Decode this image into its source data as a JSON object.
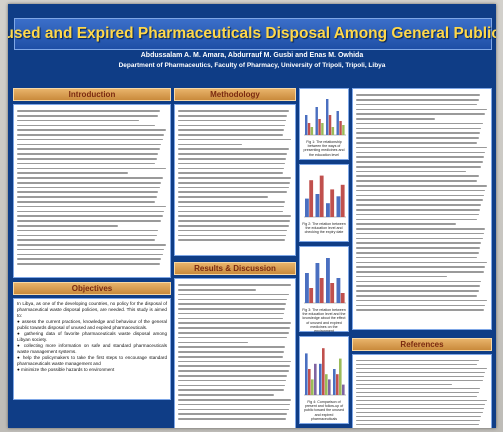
{
  "poster": {
    "title": "Practices of Unused and Expired Pharmaceuticals Disposal Among General Public in Tripoli-Libya",
    "authors": "Abdussalam A. M. Amara, Abdurrauf M. Gusbi  and Enas M. Owhida",
    "affiliation": "Department of Pharmaceutics, Faculty of Pharmacy, University of Tripoli, Tripoli, Libya"
  },
  "sections": {
    "introduction": "Introduction",
    "methodology": "Methodology",
    "results": "Results & Discussion",
    "objectives": "Objectives",
    "references": "References"
  },
  "objectives": {
    "lead": "In Libya, as one of the developing countries, no policy for the disposal of pharmaceutical waste disposal policies, are needed. This study is aimed to:",
    "items": [
      "● assess the current practices, knowledge and behaviour of the general public towards disposal of unused and expired pharmaceuticals.",
      "● gathering data of favorite pharmaceuticals waste disposal among Libyan society.",
      "● collecting more information on safe and standard pharmaceuticals waste management systems.",
      "● help the policymakers to take the first steps to encourage standard pharmaceuticals waste management and",
      "● minimize the possible hazards to environment"
    ]
  },
  "figures": {
    "fig1_caption": "Fig 1: The relationship between the ways of presenting medicines and the education level",
    "fig2_caption": "Fig 2: The relation between the education level and checking the expiry date",
    "fig3_caption": "Fig 3: The relation between the education level and the knowledge about the effect of unused and expired medicines on the environment",
    "fig4_caption": "Fig 4: Comparison of present and follow-up of public toward the unused and expired pharmaceuticals"
  },
  "colors": {
    "poster_bg": "#0f3d86",
    "title_text": "#ffd84a",
    "header_bg": "#d9a15a",
    "bar_blue": "#4a6fc0",
    "bar_red": "#c0504d",
    "bar_green": "#9bbb59",
    "bar_purple": "#8064a2"
  }
}
